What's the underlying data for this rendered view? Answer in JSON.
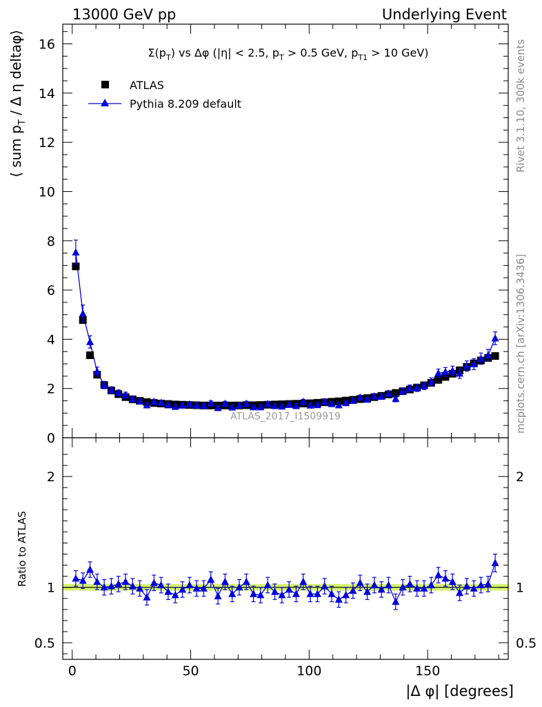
{
  "header": {
    "left": "13000 GeV pp",
    "right": "Underlying Event"
  },
  "side_labels": {
    "rivet": "Rivet 3.1.10,  300k events",
    "mcplots": "mcplots.cern.ch [arXiv:1306.3436]"
  },
  "chart_data": [
    {
      "type": "scatter",
      "title": "Σ(pT) vs Δφ (|η| < 2.5, pT > 0.5 GeV, pT1 > 10 GeV)",
      "title_parts": {
        "a": "Σ(p",
        "sub1": "T",
        "b": ") vs Δφ (|η| < 2.5, p",
        "sub2": "T",
        "c": " > 0.5 GeV, p",
        "sub3": "T1",
        "d": " > 10 GeV)"
      },
      "ylabel": "⟨ sum pT / Δη deltaφ⟩",
      "ylabel_parts": {
        "a": "⟨ sum p",
        "sub": "T",
        "b": " / Δ η deltaφ⟩"
      },
      "xlim": [
        -4,
        184
      ],
      "ylim": [
        0,
        16.8
      ],
      "yticks": [
        "0",
        "2",
        "4",
        "6",
        "8",
        "10",
        "12",
        "14",
        "16"
      ],
      "legend_position": "top-left",
      "watermark": "ATLAS_2017_I1509919",
      "series": [
        {
          "name": "ATLAS",
          "marker": "square",
          "color": "#000000",
          "x": [
            1.5,
            4.5,
            7.5,
            10.5,
            13.5,
            16.5,
            19.5,
            22.5,
            25.5,
            28.5,
            31.5,
            34.5,
            37.5,
            40.5,
            43.5,
            46.5,
            49.5,
            52.5,
            55.5,
            58.5,
            61.5,
            64.5,
            67.5,
            70.5,
            73.5,
            76.5,
            79.5,
            82.5,
            85.5,
            88.5,
            91.5,
            94.5,
            97.5,
            100.5,
            103.5,
            106.5,
            109.5,
            112.5,
            115.5,
            118.5,
            121.5,
            124.5,
            127.5,
            130.5,
            133.5,
            136.5,
            139.5,
            142.5,
            145.5,
            148.5,
            151.5,
            154.5,
            157.5,
            160.5,
            163.5,
            166.5,
            169.5,
            172.5,
            175.5,
            178.5
          ],
          "y": [
            6.96,
            4.78,
            3.35,
            2.56,
            2.14,
            1.92,
            1.77,
            1.65,
            1.56,
            1.5,
            1.45,
            1.41,
            1.39,
            1.37,
            1.35,
            1.34,
            1.33,
            1.32,
            1.31,
            1.31,
            1.31,
            1.31,
            1.31,
            1.31,
            1.32,
            1.32,
            1.33,
            1.34,
            1.35,
            1.36,
            1.37,
            1.38,
            1.39,
            1.4,
            1.42,
            1.44,
            1.46,
            1.48,
            1.51,
            1.54,
            1.57,
            1.61,
            1.65,
            1.7,
            1.76,
            1.82,
            1.89,
            1.96,
            2.04,
            2.13,
            2.23,
            2.35,
            2.47,
            2.6,
            2.74,
            2.88,
            3.02,
            3.14,
            3.24,
            3.32
          ]
        },
        {
          "name": "Pythia 8.209 default",
          "marker": "triangle",
          "color": "#0000dd",
          "x": [
            1.5,
            4.5,
            7.5,
            10.5,
            13.5,
            16.5,
            19.5,
            22.5,
            25.5,
            28.5,
            31.5,
            34.5,
            37.5,
            40.5,
            43.5,
            46.5,
            49.5,
            52.5,
            55.5,
            58.5,
            61.5,
            64.5,
            67.5,
            70.5,
            73.5,
            76.5,
            79.5,
            82.5,
            85.5,
            88.5,
            91.5,
            94.5,
            97.5,
            100.5,
            103.5,
            106.5,
            109.5,
            112.5,
            115.5,
            118.5,
            121.5,
            124.5,
            127.5,
            130.5,
            133.5,
            136.5,
            139.5,
            142.5,
            145.5,
            148.5,
            151.5,
            154.5,
            157.5,
            160.5,
            163.5,
            166.5,
            169.5,
            172.5,
            175.5,
            178.5
          ],
          "y": [
            7.53,
            5.04,
            3.89,
            2.69,
            2.14,
            1.94,
            1.82,
            1.73,
            1.57,
            1.48,
            1.32,
            1.46,
            1.42,
            1.32,
            1.26,
            1.31,
            1.36,
            1.31,
            1.3,
            1.4,
            1.21,
            1.38,
            1.23,
            1.31,
            1.38,
            1.24,
            1.24,
            1.37,
            1.29,
            1.27,
            1.34,
            1.29,
            1.46,
            1.31,
            1.33,
            1.46,
            1.37,
            1.32,
            1.41,
            1.5,
            1.63,
            1.55,
            1.68,
            1.67,
            1.79,
            1.58,
            1.89,
            2.01,
            2.02,
            2.11,
            2.27,
            2.62,
            2.67,
            2.72,
            2.61,
            2.91,
            2.99,
            3.21,
            3.35,
            4.04
          ],
          "err": [
            0.5,
            0.35,
            0.25,
            0.18,
            0.15,
            0.13,
            0.12,
            0.12,
            0.11,
            0.11,
            0.11,
            0.1,
            0.1,
            0.1,
            0.1,
            0.1,
            0.1,
            0.1,
            0.1,
            0.1,
            0.1,
            0.1,
            0.1,
            0.1,
            0.1,
            0.1,
            0.1,
            0.1,
            0.1,
            0.1,
            0.1,
            0.1,
            0.1,
            0.1,
            0.1,
            0.1,
            0.1,
            0.1,
            0.1,
            0.1,
            0.1,
            0.1,
            0.11,
            0.11,
            0.12,
            0.12,
            0.13,
            0.13,
            0.14,
            0.15,
            0.16,
            0.17,
            0.18,
            0.19,
            0.2,
            0.21,
            0.22,
            0.23,
            0.24,
            0.26
          ]
        }
      ]
    },
    {
      "type": "scatter",
      "xlabel": "|Δ φ| [degrees]",
      "ylabel": "Ratio to ATLAS",
      "xlim": [
        -4,
        184
      ],
      "ylim": [
        0.35,
        2.35
      ],
      "xticks": [
        "0",
        "50",
        "100",
        "150"
      ],
      "yticks": [
        "0.5",
        "1",
        "2"
      ],
      "band": {
        "low": 0.97,
        "high": 1.03,
        "color": "#ccee55"
      },
      "series": [
        {
          "name": "Pythia 8.209 default",
          "marker": "triangle",
          "color": "#0000dd",
          "x": [
            1.5,
            4.5,
            7.5,
            10.5,
            13.5,
            16.5,
            19.5,
            22.5,
            25.5,
            28.5,
            31.5,
            34.5,
            37.5,
            40.5,
            43.5,
            46.5,
            49.5,
            52.5,
            55.5,
            58.5,
            61.5,
            64.5,
            67.5,
            70.5,
            73.5,
            76.5,
            79.5,
            82.5,
            85.5,
            88.5,
            91.5,
            94.5,
            97.5,
            100.5,
            103.5,
            106.5,
            109.5,
            112.5,
            115.5,
            118.5,
            121.5,
            124.5,
            127.5,
            130.5,
            133.5,
            136.5,
            139.5,
            142.5,
            145.5,
            148.5,
            151.5,
            154.5,
            157.5,
            160.5,
            163.5,
            166.5,
            169.5,
            172.5,
            175.5,
            178.5
          ],
          "y": [
            1.08,
            1.06,
            1.16,
            1.05,
            1.0,
            1.01,
            1.03,
            1.05,
            1.01,
            0.99,
            0.91,
            1.04,
            1.02,
            0.96,
            0.93,
            0.98,
            1.02,
            0.99,
            0.99,
            1.07,
            0.92,
            1.05,
            0.94,
            1.0,
            1.05,
            0.94,
            0.93,
            1.02,
            0.96,
            0.93,
            0.98,
            0.94,
            1.05,
            0.94,
            0.94,
            1.01,
            0.94,
            0.89,
            0.93,
            0.97,
            1.04,
            0.96,
            1.02,
            0.98,
            1.02,
            0.87,
            1.0,
            1.03,
            0.99,
            0.99,
            1.02,
            1.11,
            1.08,
            1.05,
            0.95,
            1.01,
            0.99,
            1.02,
            1.03,
            1.22
          ],
          "err": [
            0.07,
            0.07,
            0.07,
            0.07,
            0.07,
            0.07,
            0.07,
            0.07,
            0.07,
            0.07,
            0.07,
            0.07,
            0.07,
            0.07,
            0.07,
            0.07,
            0.07,
            0.07,
            0.07,
            0.07,
            0.07,
            0.07,
            0.07,
            0.07,
            0.07,
            0.07,
            0.07,
            0.07,
            0.07,
            0.07,
            0.07,
            0.07,
            0.07,
            0.07,
            0.07,
            0.07,
            0.07,
            0.07,
            0.07,
            0.07,
            0.07,
            0.07,
            0.07,
            0.07,
            0.07,
            0.07,
            0.07,
            0.07,
            0.07,
            0.07,
            0.07,
            0.07,
            0.07,
            0.07,
            0.07,
            0.07,
            0.07,
            0.07,
            0.07,
            0.08
          ]
        }
      ]
    }
  ]
}
